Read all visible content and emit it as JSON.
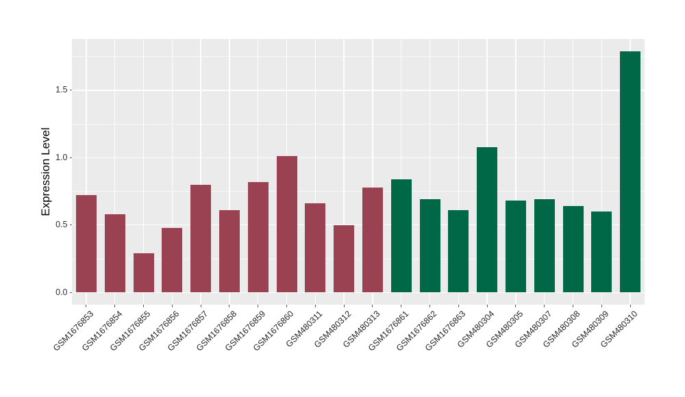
{
  "chart_data": {
    "type": "bar",
    "title": "",
    "xlabel": "",
    "ylabel": "Expression Level",
    "categories": [
      "GSM1676853",
      "GSM1676854",
      "GSM1676855",
      "GSM1676856",
      "GSM1676857",
      "GSM1676858",
      "GSM1676859",
      "GSM1676860",
      "GSM480311",
      "GSM480312",
      "GSM480313",
      "GSM1676861",
      "GSM1676862",
      "GSM1676863",
      "GSM480304",
      "GSM480305",
      "GSM480307",
      "GSM480308",
      "GSM480309",
      "GSM480310"
    ],
    "values": [
      0.72,
      0.58,
      0.29,
      0.48,
      0.8,
      0.61,
      0.82,
      1.01,
      0.66,
      0.5,
      0.78,
      0.84,
      0.69,
      0.61,
      1.08,
      0.68,
      0.69,
      0.64,
      0.6,
      1.79
    ],
    "groups": [
      "maroon",
      "maroon",
      "maroon",
      "maroon",
      "maroon",
      "maroon",
      "maroon",
      "maroon",
      "maroon",
      "maroon",
      "maroon",
      "green",
      "green",
      "green",
      "green",
      "green",
      "green",
      "green",
      "green",
      "green"
    ],
    "group_colors": {
      "maroon": "#9A4251",
      "green": "#006747"
    },
    "yticks": [
      {
        "label": "0.0",
        "value": 0.0
      },
      {
        "label": "0.5",
        "value": 0.5
      },
      {
        "label": "1.0",
        "value": 1.0
      },
      {
        "label": "1.5",
        "value": 1.5
      }
    ],
    "yticks_minor": [
      0.25,
      0.75,
      1.25,
      1.75
    ],
    "ylim": [
      -0.09,
      1.88
    ],
    "x_tick_rotation_deg": 45,
    "panel_background": "#EBEBEB",
    "gridline_color": "#FFFFFF",
    "legend": null,
    "grid": "major and minor horizontal, major vertical at category centers"
  }
}
